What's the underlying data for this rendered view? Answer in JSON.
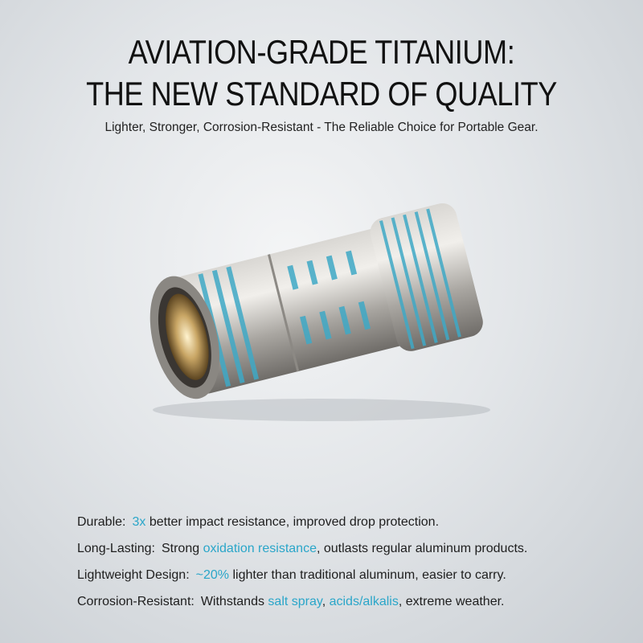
{
  "header": {
    "title_line1": "AVIATION-GRADE TITANIUM:",
    "title_line2": "THE NEW STANDARD OF QUALITY",
    "subtitle": "Lighter, Stronger, Corrosion-Resistant - The Reliable Choice for Portable Gear."
  },
  "product": {
    "image": "titanium-flashlight",
    "accent_color": "#3fa9c6"
  },
  "colors": {
    "highlight": "#2aa6c9",
    "text": "#1e1e1e"
  },
  "features": [
    {
      "label": "Durable:",
      "segments": [
        {
          "text": "3x",
          "hl": true
        },
        {
          "text": " better impact resistance, improved drop protection.",
          "hl": false
        }
      ]
    },
    {
      "label": "Long-Lasting:",
      "segments": [
        {
          "text": "Strong ",
          "hl": false
        },
        {
          "text": "oxidation resistance",
          "hl": true
        },
        {
          "text": ", outlasts regular aluminum products.",
          "hl": false
        }
      ]
    },
    {
      "label": "Lightweight Design:",
      "segments": [
        {
          "text": "~20%",
          "hl": true
        },
        {
          "text": " lighter than traditional aluminum, easier to carry.",
          "hl": false
        }
      ]
    },
    {
      "label": "Corrosion-Resistant:",
      "segments": [
        {
          "text": "Withstands ",
          "hl": false
        },
        {
          "text": "salt spray",
          "hl": true
        },
        {
          "text": ", ",
          "hl": false
        },
        {
          "text": "acids/alkalis",
          "hl": true
        },
        {
          "text": ", extreme weather.",
          "hl": false
        }
      ]
    }
  ]
}
